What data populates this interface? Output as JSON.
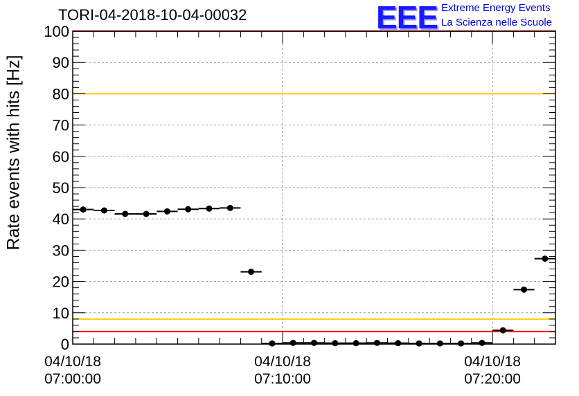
{
  "header": {
    "title": "TORI-04-2018-10-04-00032",
    "logo_text": "EEE",
    "logo_line1": "Extreme Energy Events",
    "logo_line2": "La Scienza nelle Scuole"
  },
  "colors": {
    "red_threshold": "#ff0000",
    "yellow_threshold": "#ffcc00",
    "logo": "#1a1aff",
    "points": "#000000"
  },
  "chart_data": {
    "type": "scatter",
    "title": "TORI-04-2018-10-04-00032",
    "xlabel": "",
    "ylabel": "Rate events with hits [Hz]",
    "ylim": [
      0,
      100
    ],
    "xlim_minutes": [
      0,
      23
    ],
    "yticks": [
      "0",
      "10",
      "20",
      "30",
      "40",
      "50",
      "60",
      "70",
      "80",
      "90",
      "100"
    ],
    "xticks": [
      {
        "minute": 0,
        "line1": "04/10/18",
        "line2": "07:00:00"
      },
      {
        "minute": 10,
        "line1": "04/10/18",
        "line2": "07:10:00"
      },
      {
        "minute": 20,
        "line1": "04/10/18",
        "line2": "07:20:00"
      }
    ],
    "grid": true,
    "hlines": [
      {
        "y": 100,
        "color": "#ff0000"
      },
      {
        "y": 80,
        "color": "#ffcc00"
      },
      {
        "y": 8,
        "color": "#ffcc00"
      },
      {
        "y": 4,
        "color": "#ff0000"
      }
    ],
    "bin_width_minutes": 1,
    "series": [
      {
        "x": [
          0.5,
          1.5,
          2.5,
          3.5,
          4.5,
          5.5,
          6.5,
          7.5,
          8.5,
          9.5,
          10.5,
          11.5,
          12.5,
          13.5,
          14.5,
          15.5,
          16.5,
          17.5,
          18.5,
          19.5,
          20.5,
          21.5,
          22.5
        ],
        "y": [
          43,
          42.7,
          41.6,
          41.6,
          42.4,
          43.1,
          43.3,
          43.5,
          23.1,
          0.2,
          0.4,
          0.4,
          0.3,
          0.3,
          0.4,
          0.3,
          0.2,
          0.2,
          0.2,
          0.4,
          4.4,
          17.4,
          27.3
        ]
      }
    ]
  }
}
